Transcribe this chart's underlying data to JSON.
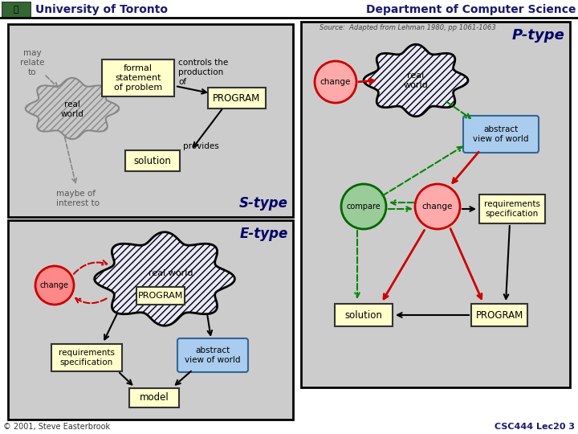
{
  "title_left": "University of Toronto",
  "title_right": "Department of Computer Science",
  "source_text": "Source:  Adapted from Lehman 1980, pp 1061-1063",
  "footer_left": "© 2001, Steve Easterbrook",
  "footer_right": "CSC444 Lec20 3",
  "panel_bg": "#cccccc",
  "box_yellow_fill": "#ffffcc",
  "box_yellow_stroke": "#999900",
  "box_blue_fill": "#aaccee",
  "box_blue_stroke": "#336699",
  "header_bg": "#ffffff",
  "footer_bg": "#ffffff",
  "red_fill": "#ff6666",
  "red_stroke": "#cc0000",
  "pink_fill": "#ffaaaa",
  "green_fill": "#99cc99",
  "green_stroke": "#006600",
  "green_arrow": "#008800",
  "red_arrow": "#cc0000",
  "black_arrow": "#000000",
  "gray_cloud_fill": "#c8c8c8",
  "gray_cloud_stroke": "#888888",
  "white_cloud_fill": "#e8e8f8",
  "black_cloud_stroke": "#000000"
}
